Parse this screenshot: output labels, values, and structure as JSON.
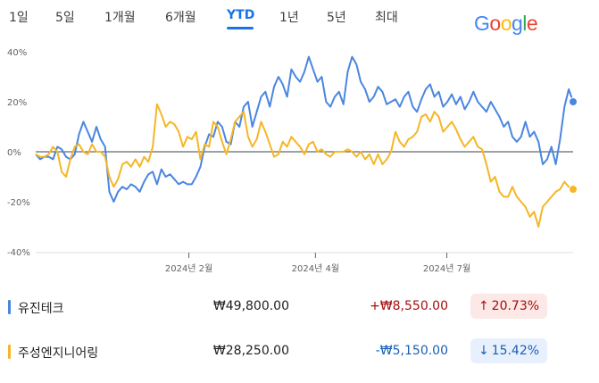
{
  "tabs": [
    {
      "label": "1일"
    },
    {
      "label": "5일"
    },
    {
      "label": "1개월"
    },
    {
      "label": "6개월"
    },
    {
      "label": "YTD"
    },
    {
      "label": "1년"
    },
    {
      "label": "5년"
    },
    {
      "label": "최대"
    }
  ],
  "active_tab": "YTD",
  "logo": {
    "letters": [
      "G",
      "o",
      "o",
      "g",
      "l",
      "e"
    ],
    "colors": [
      "#4285f4",
      "#ea4335",
      "#fbbc05",
      "#4285f4",
      "#34a853",
      "#ea4335"
    ]
  },
  "chart_data": {
    "type": "line",
    "x_tick_labels": [
      "2024년 2월",
      "2024년 4월",
      "2024년 7월"
    ],
    "y_tick_labels": [
      "40%",
      "20%",
      "0%",
      "-20%",
      "-40%"
    ],
    "y_ticks": [
      40,
      20,
      0,
      -20,
      -40
    ],
    "ylim": [
      -40,
      40
    ],
    "series": [
      {
        "name": "유진테크",
        "color": "#4a86e0",
        "values": [
          -1,
          -3,
          -2,
          -2,
          -3,
          2,
          1,
          -2,
          -3,
          -1,
          7,
          12,
          8,
          4,
          10,
          5,
          2,
          -16,
          -20,
          -16,
          -14,
          -15,
          -13,
          -14,
          -16,
          -12,
          -9,
          -8,
          -13,
          -7,
          -10,
          -9,
          -11,
          -13,
          -12,
          -13,
          -13,
          -10,
          -6,
          2,
          7,
          6,
          12,
          10,
          4,
          3,
          12,
          10,
          18,
          20,
          10,
          16,
          22,
          24,
          18,
          26,
          30,
          27,
          22,
          33,
          30,
          28,
          32,
          38,
          33,
          28,
          30,
          20,
          18,
          22,
          24,
          19,
          32,
          38,
          35,
          28,
          25,
          20,
          22,
          26,
          24,
          19,
          20,
          21,
          18,
          22,
          24,
          18,
          16,
          21,
          25,
          27,
          22,
          24,
          18,
          20,
          23,
          19,
          22,
          17,
          20,
          24,
          20,
          18,
          16,
          20,
          17,
          14,
          10,
          12,
          6,
          4,
          6,
          12,
          6,
          8,
          4,
          -5,
          -3,
          2,
          -5,
          5,
          18,
          25,
          20
        ]
      },
      {
        "name": "주성엔지니어링",
        "color": "#f5b627",
        "values": [
          -1,
          -2,
          -2,
          -1,
          2,
          0,
          -8,
          -10,
          -3,
          2,
          3,
          0,
          -1,
          3,
          0,
          0,
          -2,
          -10,
          -14,
          -11,
          -5,
          -4,
          -6,
          -3,
          -6,
          -2,
          -4,
          2,
          19,
          15,
          10,
          12,
          11,
          8,
          2,
          6,
          5,
          8,
          -3,
          3,
          2,
          12,
          10,
          4,
          -1,
          5,
          12,
          14,
          16,
          6,
          2,
          5,
          12,
          8,
          3,
          -2,
          -1,
          4,
          2,
          6,
          4,
          2,
          -1,
          3,
          4,
          0,
          1,
          -1,
          -2,
          0,
          0,
          0,
          1,
          0,
          -2,
          0,
          -3,
          -1,
          -5,
          -1,
          -5,
          -3,
          0,
          8,
          4,
          2,
          5,
          6,
          8,
          14,
          15,
          12,
          16,
          14,
          8,
          10,
          12,
          9,
          5,
          2,
          4,
          6,
          2,
          1,
          -5,
          -12,
          -10,
          -16,
          -18,
          -18,
          -14,
          -18,
          -20,
          -22,
          -26,
          -24,
          -30,
          -22,
          -20,
          -18,
          -16,
          -15,
          -12,
          -14,
          -15
        ]
      }
    ]
  },
  "rows": [
    {
      "name": "유진테크",
      "color": "#4a86e0",
      "price": "₩49,800.00",
      "change": "+₩8,550.00",
      "change_color": "#a50e0e",
      "pct": "20.73%",
      "arrow": "↑",
      "pct_bg": "#fce8e6",
      "pct_color": "#a50e0e"
    },
    {
      "name": "주성엔지니어링",
      "color": "#f5b627",
      "price": "₩28,250.00",
      "change": "-₩5,150.00",
      "change_color": "#1a5fb4",
      "pct": "15.42%",
      "arrow": "↓",
      "pct_bg": "#e8f0fe",
      "pct_color": "#1a5fb4"
    }
  ]
}
